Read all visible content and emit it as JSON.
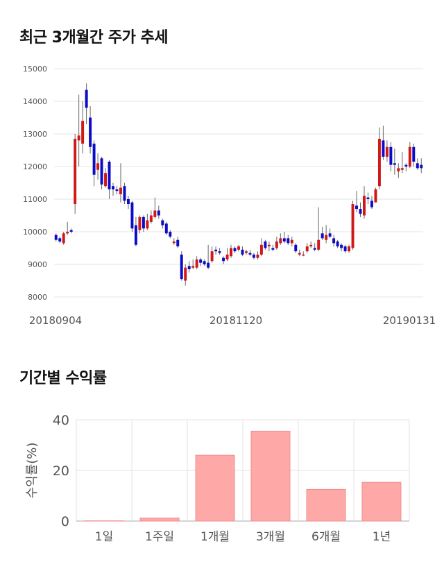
{
  "sections": {
    "price_title": "최근 3개월간 주가 추세",
    "returns_title": "기간별 수익률"
  },
  "chart_data": [
    {
      "type": "candlestick",
      "title": "최근 3개월간 주가 추세",
      "ylim": [
        8000,
        15000
      ],
      "yticks": [
        8000,
        9000,
        10000,
        11000,
        12000,
        13000,
        14000,
        15000
      ],
      "xtick_labels": [
        "20180904",
        "20181120",
        "20190131"
      ],
      "grid": true,
      "colors": {
        "up": "#d01818",
        "down": "#0c0cc8",
        "wick": "#666666"
      },
      "candles": [
        [
          9900,
          9750,
          9950,
          9700
        ],
        [
          9800,
          9700,
          9850,
          9650
        ],
        [
          9650,
          9950,
          10000,
          9600
        ],
        [
          9950,
          10000,
          10300,
          9900
        ],
        [
          10050,
          10000,
          10100,
          9950
        ],
        [
          10850,
          12850,
          13000,
          10550
        ],
        [
          12800,
          12950,
          14200,
          12000
        ],
        [
          12700,
          13400,
          14000,
          12400
        ],
        [
          14350,
          13800,
          14550,
          13300
        ],
        [
          13500,
          12600,
          13850,
          12400
        ],
        [
          12700,
          11750,
          12800,
          11400
        ],
        [
          11900,
          12100,
          12400,
          11600
        ],
        [
          12250,
          11450,
          12300,
          11300
        ],
        [
          11400,
          11800,
          11950,
          11350
        ],
        [
          12150,
          11300,
          12200,
          11000
        ],
        [
          11400,
          11300,
          11500,
          11100
        ],
        [
          11300,
          11250,
          11400,
          11150
        ],
        [
          11150,
          11350,
          12100,
          10900
        ],
        [
          11400,
          10950,
          11500,
          10850
        ],
        [
          11000,
          10850,
          11100,
          10700
        ],
        [
          10900,
          10100,
          10950,
          10000
        ],
        [
          10200,
          9600,
          10450,
          9550
        ],
        [
          10050,
          10450,
          10500,
          9950
        ],
        [
          10450,
          10100,
          10500,
          10000
        ],
        [
          10100,
          10350,
          10550,
          10050
        ],
        [
          10300,
          10500,
          10650,
          10250
        ],
        [
          10450,
          10650,
          11050,
          10400
        ],
        [
          10650,
          10500,
          10800,
          10400
        ],
        [
          10350,
          10200,
          10400,
          10100
        ],
        [
          10250,
          9950,
          10300,
          9900
        ],
        [
          10000,
          9850,
          10050,
          9800
        ],
        [
          9650,
          9700,
          9800,
          9600
        ],
        [
          9750,
          9550,
          9850,
          9500
        ],
        [
          9300,
          8550,
          9400,
          8500
        ],
        [
          8500,
          8900,
          9000,
          8350
        ],
        [
          8950,
          8850,
          9100,
          8750
        ],
        [
          8900,
          8950,
          9150,
          8850
        ],
        [
          8900,
          9150,
          9250,
          8850
        ],
        [
          9150,
          9050,
          9200,
          8950
        ],
        [
          9100,
          9000,
          9150,
          8950
        ],
        [
          9050,
          8900,
          9600,
          8850
        ],
        [
          9100,
          9400,
          9550,
          9050
        ],
        [
          9450,
          9400,
          9550,
          9300
        ],
        [
          9400,
          9350,
          9500,
          9300
        ],
        [
          9200,
          9100,
          9250,
          9000
        ],
        [
          9150,
          9300,
          9500,
          9100
        ],
        [
          9250,
          9500,
          9600,
          9200
        ],
        [
          9500,
          9400,
          9550,
          9350
        ],
        [
          9450,
          9550,
          9600,
          9400
        ],
        [
          9450,
          9300,
          9550,
          9250
        ],
        [
          9350,
          9400,
          9450,
          9300
        ],
        [
          9350,
          9300,
          9450,
          9250
        ],
        [
          9300,
          9200,
          9350,
          9150
        ],
        [
          9200,
          9300,
          9400,
          9150
        ],
        [
          9300,
          9600,
          9800,
          9250
        ],
        [
          9700,
          9500,
          9750,
          9450
        ],
        [
          9550,
          9600,
          9700,
          9400
        ],
        [
          9500,
          9450,
          9600,
          9400
        ],
        [
          9500,
          9700,
          9850,
          9450
        ],
        [
          9650,
          9800,
          9950,
          9600
        ],
        [
          9800,
          9700,
          10000,
          9650
        ],
        [
          9800,
          9650,
          9900,
          9600
        ],
        [
          9650,
          9750,
          9850,
          9550
        ],
        [
          9600,
          9400,
          9650,
          9350
        ],
        [
          9300,
          9350,
          9450,
          9250
        ],
        [
          9300,
          9300,
          9400,
          9250
        ],
        [
          9400,
          9550,
          9650,
          9350
        ],
        [
          9550,
          9600,
          9700,
          9500
        ],
        [
          9500,
          9450,
          9650,
          9400
        ],
        [
          9450,
          9750,
          10750,
          9400
        ],
        [
          9950,
          9800,
          10150,
          9750
        ],
        [
          9750,
          9900,
          10200,
          9650
        ],
        [
          9950,
          9850,
          10100,
          9800
        ],
        [
          9800,
          9650,
          9900,
          9550
        ],
        [
          9700,
          9550,
          9750,
          9500
        ],
        [
          9600,
          9500,
          9650,
          9400
        ],
        [
          9550,
          9400,
          9600,
          9350
        ],
        [
          9400,
          9550,
          9600,
          9350
        ],
        [
          9500,
          10850,
          10950,
          9450
        ],
        [
          10800,
          10700,
          11250,
          10600
        ],
        [
          10700,
          10550,
          10900,
          10450
        ],
        [
          10500,
          11100,
          11400,
          10400
        ],
        [
          11050,
          11000,
          11200,
          10850
        ],
        [
          10950,
          10750,
          11100,
          10700
        ],
        [
          10900,
          11300,
          11350,
          10900
        ],
        [
          11400,
          12850,
          13200,
          11300
        ],
        [
          12800,
          12300,
          13250,
          12200
        ],
        [
          12300,
          12600,
          12800,
          12150
        ],
        [
          12600,
          12050,
          12750,
          11850
        ],
        [
          12100,
          12050,
          12550,
          11750
        ],
        [
          11850,
          11950,
          12100,
          11650
        ],
        [
          11900,
          11950,
          12450,
          11800
        ],
        [
          12050,
          12000,
          12100,
          11850
        ],
        [
          12000,
          12600,
          12750,
          11950
        ],
        [
          12600,
          12150,
          12700,
          12000
        ],
        [
          12100,
          11950,
          12250,
          11900
        ],
        [
          12050,
          11950,
          12250,
          11800
        ]
      ]
    },
    {
      "type": "bar",
      "title": "기간별 수익률",
      "categories": [
        "1일",
        "1주일",
        "1개월",
        "3개월",
        "6개월",
        "1년"
      ],
      "values": [
        0.1,
        1.2,
        26,
        35.5,
        12.5,
        15.3
      ],
      "ylabel": "수익률(%)",
      "ylim": [
        0,
        40
      ],
      "yticks": [
        0,
        20,
        40
      ],
      "grid": true,
      "colors": {
        "bar": "#ffa8a8",
        "bar_edge": "#f08c8c"
      }
    }
  ]
}
